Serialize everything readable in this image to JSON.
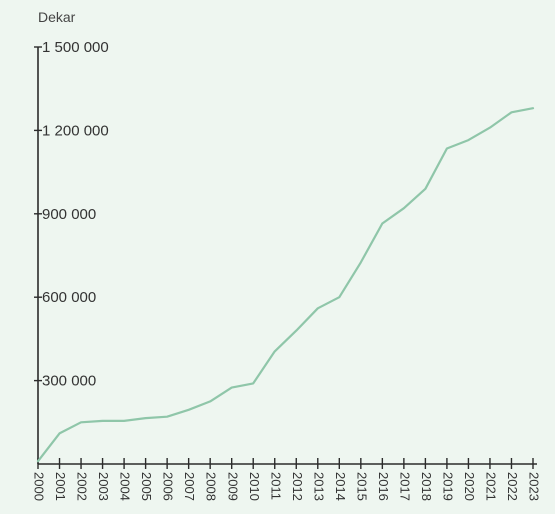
{
  "chart_data": {
    "type": "line",
    "ylabel": "Dekar",
    "xlabel": "",
    "title": "",
    "ylim": [
      0,
      1500000
    ],
    "yticks": [
      300000,
      600000,
      900000,
      1200000,
      1500000
    ],
    "ytick_labels": [
      "300 000",
      "600 000",
      "900 000",
      "1 200 000",
      "1 500 000"
    ],
    "x": [
      "2000",
      "2001",
      "2002",
      "2003",
      "2004",
      "2005",
      "2006",
      "2007",
      "2008",
      "2009",
      "2010",
      "2011",
      "2012",
      "2013",
      "2014",
      "2015",
      "2016",
      "2017",
      "2018",
      "2019",
      "2020",
      "2021",
      "2022",
      "2023"
    ],
    "series": [
      {
        "values": [
          10000,
          110000,
          150000,
          155000,
          155000,
          165000,
          170000,
          195000,
          225000,
          275000,
          290000,
          405000,
          480000,
          560000,
          600000,
          725000,
          865000,
          920000,
          990000,
          1135000,
          1165000,
          1210000,
          1265000,
          1280000
        ]
      }
    ],
    "grid": false,
    "colors": {
      "background": "#eef6f0",
      "line": "#8fc6a9",
      "axis": "#2b2b2b",
      "text": "#333333"
    }
  }
}
